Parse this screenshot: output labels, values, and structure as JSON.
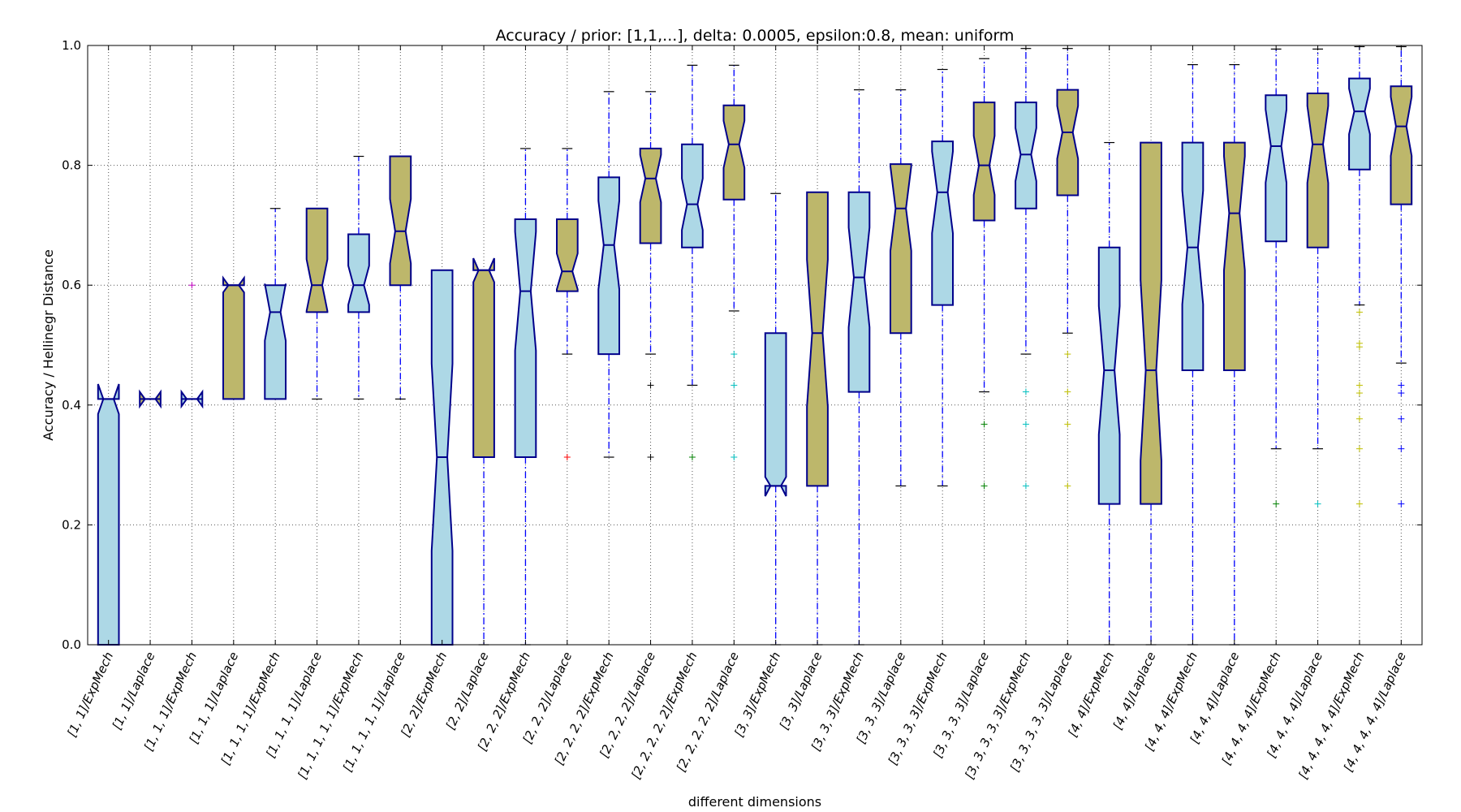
{
  "chart_data": {
    "type": "box",
    "title": "Accuracy / prior: [1,1,...], delta: 0.0005, epsilon:0.8, mean: uniform",
    "xlabel": "different dimensions",
    "ylabel": "Accuracy / Hellinegr Distance",
    "ylim": [
      0.0,
      1.0
    ],
    "yticks": [
      "0.0",
      "0.2",
      "0.4",
      "0.6",
      "0.8",
      "1.0"
    ],
    "grid": true,
    "notched": true,
    "colors": {
      "ExpMech": "#add8e6",
      "Laplace": "#bdb76b",
      "box_edge": "#00008b",
      "whisker": "#0000ff",
      "cap": "#000000"
    },
    "boxes": [
      {
        "label": "[1, 1]/ExpMech",
        "method": "ExpMech",
        "q1": 0.0,
        "median": 0.41,
        "q3": 0.41,
        "whislo": 0.0,
        "whishi": 0.41,
        "notch": [
          0.435,
          0.385
        ],
        "fliers": []
      },
      {
        "label": "[1, 1]/Laplace",
        "method": "Laplace",
        "q1": 0.41,
        "median": 0.41,
        "q3": 0.41,
        "whislo": 0.41,
        "whishi": 0.41,
        "fliers": []
      },
      {
        "label": "[1, 1, 1]/ExpMech",
        "method": "ExpMech",
        "q1": 0.41,
        "median": 0.41,
        "q3": 0.41,
        "whislo": 0.41,
        "whishi": 0.41,
        "fliers": [
          {
            "y": 0.6,
            "color": "#bf00bf"
          }
        ]
      },
      {
        "label": "[1, 1, 1]/Laplace",
        "method": "Laplace",
        "q1": 0.41,
        "median": 0.6,
        "q3": 0.6,
        "whislo": 0.41,
        "whishi": 0.6,
        "notch": [
          0.612,
          0.588
        ],
        "fliers": []
      },
      {
        "label": "[1, 1, 1, 1]/ExpMech",
        "method": "ExpMech",
        "q1": 0.41,
        "median": 0.555,
        "q3": 0.6,
        "whislo": 0.41,
        "whishi": 0.728,
        "fliers": []
      },
      {
        "label": "[1, 1, 1, 1]/Laplace",
        "method": "Laplace",
        "q1": 0.555,
        "median": 0.6,
        "q3": 0.728,
        "whislo": 0.41,
        "whishi": 0.728,
        "fliers": []
      },
      {
        "label": "[1, 1, 1, 1, 1]/ExpMech",
        "method": "ExpMech",
        "q1": 0.555,
        "median": 0.6,
        "q3": 0.685,
        "whislo": 0.41,
        "whishi": 0.815,
        "fliers": []
      },
      {
        "label": "[1, 1, 1, 1, 1]/Laplace",
        "method": "Laplace",
        "q1": 0.6,
        "median": 0.69,
        "q3": 0.815,
        "whislo": 0.41,
        "whishi": 0.815,
        "fliers": []
      },
      {
        "label": "[2, 2]/ExpMech",
        "method": "ExpMech",
        "q1": 0.0,
        "median": 0.313,
        "q3": 0.625,
        "whislo": 0.0,
        "whishi": 0.625,
        "fliers": []
      },
      {
        "label": "[2, 2]/Laplace",
        "method": "Laplace",
        "q1": 0.313,
        "median": 0.625,
        "q3": 0.625,
        "whislo": 0.0,
        "whishi": 0.625,
        "notch": [
          0.645,
          0.605
        ],
        "fliers": []
      },
      {
        "label": "[2, 2, 2]/ExpMech",
        "method": "ExpMech",
        "q1": 0.313,
        "median": 0.59,
        "q3": 0.71,
        "whislo": 0.0,
        "whishi": 0.828,
        "fliers": []
      },
      {
        "label": "[2, 2, 2]/Laplace",
        "method": "Laplace",
        "q1": 0.59,
        "median": 0.623,
        "q3": 0.71,
        "whislo": 0.485,
        "whishi": 0.828,
        "fliers": [
          {
            "y": 0.313,
            "color": "#ff0000"
          }
        ]
      },
      {
        "label": "[2, 2, 2, 2]/ExpMech",
        "method": "ExpMech",
        "q1": 0.485,
        "median": 0.667,
        "q3": 0.78,
        "whislo": 0.313,
        "whishi": 0.923,
        "fliers": []
      },
      {
        "label": "[2, 2, 2, 2]/Laplace",
        "method": "Laplace",
        "q1": 0.67,
        "median": 0.778,
        "q3": 0.828,
        "whislo": 0.485,
        "whishi": 0.923,
        "fliers": [
          {
            "y": 0.433,
            "color": "#000000"
          },
          {
            "y": 0.313,
            "color": "#000000"
          }
        ]
      },
      {
        "label": "[2, 2, 2, 2, 2]/ExpMech",
        "method": "ExpMech",
        "q1": 0.663,
        "median": 0.735,
        "q3": 0.835,
        "whislo": 0.433,
        "whishi": 0.967,
        "fliers": [
          {
            "y": 0.313,
            "color": "#008000"
          }
        ]
      },
      {
        "label": "[2, 2, 2, 2, 2]/Laplace",
        "method": "Laplace",
        "q1": 0.743,
        "median": 0.835,
        "q3": 0.9,
        "whislo": 0.557,
        "whishi": 0.967,
        "fliers": [
          {
            "y": 0.485,
            "color": "#00bfbf"
          },
          {
            "y": 0.433,
            "color": "#00bfbf"
          },
          {
            "y": 0.313,
            "color": "#00bfbf"
          }
        ]
      },
      {
        "label": "[3, 3]/ExpMech",
        "method": "ExpMech",
        "q1": 0.265,
        "median": 0.265,
        "q3": 0.52,
        "whislo": 0.0,
        "whishi": 0.753,
        "notch": [
          0.28,
          0.248
        ],
        "fliers": []
      },
      {
        "label": "[3, 3]/Laplace",
        "method": "Laplace",
        "q1": 0.265,
        "median": 0.52,
        "q3": 0.755,
        "whislo": 0.0,
        "whishi": 0.755,
        "fliers": []
      },
      {
        "label": "[3, 3, 3]/ExpMech",
        "method": "ExpMech",
        "q1": 0.422,
        "median": 0.613,
        "q3": 0.755,
        "whislo": 0.0,
        "whishi": 0.926,
        "fliers": []
      },
      {
        "label": "[3, 3, 3]/Laplace",
        "method": "Laplace",
        "q1": 0.52,
        "median": 0.728,
        "q3": 0.802,
        "whislo": 0.265,
        "whishi": 0.926,
        "fliers": []
      },
      {
        "label": "[3, 3, 3, 3]/ExpMech",
        "method": "ExpMech",
        "q1": 0.567,
        "median": 0.755,
        "q3": 0.84,
        "whislo": 0.265,
        "whishi": 0.96,
        "fliers": []
      },
      {
        "label": "[3, 3, 3, 3]/Laplace",
        "method": "Laplace",
        "q1": 0.708,
        "median": 0.8,
        "q3": 0.905,
        "whislo": 0.422,
        "whishi": 0.978,
        "fliers": [
          {
            "y": 0.368,
            "color": "#008000"
          },
          {
            "y": 0.265,
            "color": "#008000"
          }
        ]
      },
      {
        "label": "[3, 3, 3, 3, 3]/ExpMech",
        "method": "ExpMech",
        "q1": 0.728,
        "median": 0.818,
        "q3": 0.905,
        "whislo": 0.485,
        "whishi": 0.995,
        "fliers": [
          {
            "y": 0.422,
            "color": "#00bfbf"
          },
          {
            "y": 0.368,
            "color": "#00bfbf"
          },
          {
            "y": 0.265,
            "color": "#00bfbf"
          }
        ]
      },
      {
        "label": "[3, 3, 3, 3, 3]/Laplace",
        "method": "Laplace",
        "q1": 0.75,
        "median": 0.855,
        "q3": 0.926,
        "whislo": 0.52,
        "whishi": 0.995,
        "fliers": [
          {
            "y": 0.485,
            "color": "#bfbf00"
          },
          {
            "y": 0.422,
            "color": "#bfbf00"
          },
          {
            "y": 0.368,
            "color": "#bfbf00"
          },
          {
            "y": 0.265,
            "color": "#bfbf00"
          }
        ]
      },
      {
        "label": "[4, 4]/ExpMech",
        "method": "ExpMech",
        "q1": 0.235,
        "median": 0.458,
        "q3": 0.663,
        "whislo": 0.0,
        "whishi": 0.838,
        "fliers": []
      },
      {
        "label": "[4, 4]/Laplace",
        "method": "Laplace",
        "q1": 0.235,
        "median": 0.458,
        "q3": 0.838,
        "whislo": 0.0,
        "whishi": 0.838,
        "fliers": []
      },
      {
        "label": "[4, 4, 4]/ExpMech",
        "method": "ExpMech",
        "q1": 0.458,
        "median": 0.663,
        "q3": 0.838,
        "whislo": 0.0,
        "whishi": 0.968,
        "fliers": []
      },
      {
        "label": "[4, 4, 4]/Laplace",
        "method": "Laplace",
        "q1": 0.458,
        "median": 0.72,
        "q3": 0.838,
        "whislo": 0.0,
        "whishi": 0.968,
        "fliers": []
      },
      {
        "label": "[4, 4, 4, 4]/ExpMech",
        "method": "ExpMech",
        "q1": 0.673,
        "median": 0.832,
        "q3": 0.917,
        "whislo": 0.327,
        "whishi": 0.994,
        "fliers": [
          {
            "y": 0.235,
            "color": "#008000"
          }
        ]
      },
      {
        "label": "[4, 4, 4, 4]/Laplace",
        "method": "Laplace",
        "q1": 0.663,
        "median": 0.835,
        "q3": 0.92,
        "whislo": 0.327,
        "whishi": 0.994,
        "fliers": [
          {
            "y": 0.235,
            "color": "#00bfbf"
          }
        ]
      },
      {
        "label": "[4, 4, 4, 4, 4]/ExpMech",
        "method": "ExpMech",
        "q1": 0.793,
        "median": 0.89,
        "q3": 0.945,
        "whislo": 0.567,
        "whishi": 0.998,
        "fliers": [
          {
            "y": 0.555,
            "color": "#bfbf00"
          },
          {
            "y": 0.503,
            "color": "#bfbf00"
          },
          {
            "y": 0.497,
            "color": "#bfbf00"
          },
          {
            "y": 0.433,
            "color": "#bfbf00"
          },
          {
            "y": 0.42,
            "color": "#bfbf00"
          },
          {
            "y": 0.377,
            "color": "#bfbf00"
          },
          {
            "y": 0.327,
            "color": "#bfbf00"
          },
          {
            "y": 0.235,
            "color": "#bfbf00"
          }
        ]
      },
      {
        "label": "[4, 4, 4, 4, 4]/Laplace",
        "method": "Laplace",
        "q1": 0.735,
        "median": 0.865,
        "q3": 0.932,
        "whislo": 0.47,
        "whishi": 0.998,
        "fliers": [
          {
            "y": 0.433,
            "color": "#0000ff"
          },
          {
            "y": 0.42,
            "color": "#0000ff"
          },
          {
            "y": 0.377,
            "color": "#0000ff"
          },
          {
            "y": 0.327,
            "color": "#0000ff"
          },
          {
            "y": 0.235,
            "color": "#0000ff"
          }
        ]
      }
    ]
  }
}
